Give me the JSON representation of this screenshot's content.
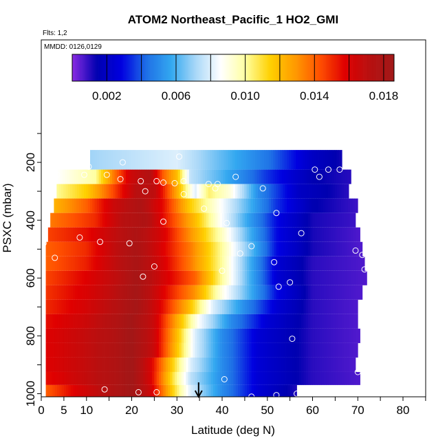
{
  "chart_data": {
    "type": "heatmap",
    "title": "ATOM2 Northeast_Pacific_1 HO2_GMI",
    "annotations": [
      "Flts: 1,2",
      "MMDD: 0126,0129"
    ],
    "xlabel": "Latitude (deg N)",
    "ylabel": "PSXC (mbar)",
    "xlim": [
      0,
      85
    ],
    "ylim": [
      1010,
      0
    ],
    "x_ticks": [
      0,
      5,
      10,
      20,
      30,
      40,
      50,
      60,
      70,
      80
    ],
    "y_ticks": [
      200,
      400,
      600,
      800,
      1000
    ],
    "colorbar": {
      "range": [
        0.0,
        0.0186
      ],
      "tick_values": [
        0.002,
        0.006,
        0.01,
        0.014,
        0.018
      ],
      "tick_labels": [
        "0.002",
        "0.006",
        "0.010",
        "0.014",
        "0.018"
      ],
      "colors": [
        "#8a2be2",
        "#0000b0",
        "#0000e0",
        "#1e6fe6",
        "#33a8f0",
        "#aad8f8",
        "#ffffff",
        "#ffffa0",
        "#ffd000",
        "#ff9a00",
        "#ff5000",
        "#e00000",
        "#b81010",
        "#a01818"
      ],
      "units": ""
    },
    "rows": [
      {
        "p": 200,
        "lat0": 10.8,
        "lat1": 66.5,
        "profile": [
          [
            10,
            0.007
          ],
          [
            30,
            0.008
          ],
          [
            50,
            0.0045
          ],
          [
            60,
            0.002
          ],
          [
            67,
            0.0012
          ]
        ]
      },
      {
        "p": 250,
        "lat0": 3.7,
        "lat1": 68.5,
        "profile": [
          [
            3,
            0.0085
          ],
          [
            12,
            0.01
          ],
          [
            16,
            0.0135
          ],
          [
            20,
            0.0165
          ],
          [
            24,
            0.0175
          ],
          [
            27,
            0.014
          ],
          [
            30,
            0.012
          ],
          [
            33,
            0.0075
          ],
          [
            40,
            0.006
          ],
          [
            50,
            0.0035
          ],
          [
            60,
            0.0015
          ],
          [
            69,
            0.001
          ]
        ]
      },
      {
        "p": 300,
        "lat0": 3.4,
        "lat1": 68.0,
        "profile": [
          [
            3,
            0.01
          ],
          [
            10,
            0.0115
          ],
          [
            16,
            0.0145
          ],
          [
            21,
            0.0172
          ],
          [
            25,
            0.017
          ],
          [
            30,
            0.0125
          ],
          [
            34,
            0.008
          ],
          [
            37,
            0.0105
          ],
          [
            42,
            0.009
          ],
          [
            48,
            0.005
          ],
          [
            57,
            0.002
          ],
          [
            68,
            0.001
          ]
        ]
      },
      {
        "p": 350,
        "lat0": 2.8,
        "lat1": 70.0,
        "profile": [
          [
            2,
            0.012
          ],
          [
            10,
            0.014
          ],
          [
            16,
            0.0165
          ],
          [
            22,
            0.0178
          ],
          [
            27,
            0.0155
          ],
          [
            33,
            0.0115
          ],
          [
            40,
            0.0085
          ],
          [
            46,
            0.006
          ],
          [
            52,
            0.0035
          ],
          [
            60,
            0.0015
          ],
          [
            70,
            0.0008
          ]
        ]
      },
      {
        "p": 400,
        "lat0": 2.0,
        "lat1": 69.5,
        "profile": [
          [
            2,
            0.0135
          ],
          [
            12,
            0.015
          ],
          [
            18,
            0.0172
          ],
          [
            23,
            0.0178
          ],
          [
            28,
            0.015
          ],
          [
            34,
            0.012
          ],
          [
            40,
            0.0085
          ],
          [
            46,
            0.0055
          ],
          [
            52,
            0.003
          ],
          [
            60,
            0.0012
          ],
          [
            70,
            0.0008
          ]
        ]
      },
      {
        "p": 450,
        "lat0": 1.5,
        "lat1": 70.5,
        "profile": [
          [
            1,
            0.0145
          ],
          [
            10,
            0.0155
          ],
          [
            17,
            0.017
          ],
          [
            21,
            0.0178
          ],
          [
            27,
            0.016
          ],
          [
            33,
            0.013
          ],
          [
            40,
            0.0095
          ],
          [
            46,
            0.006
          ],
          [
            52,
            0.003
          ],
          [
            60,
            0.0012
          ],
          [
            71,
            0.0006
          ]
        ]
      },
      {
        "p": 500,
        "lat0": 1.0,
        "lat1": 71.0,
        "profile": [
          [
            1,
            0.014
          ],
          [
            10,
            0.015
          ],
          [
            16,
            0.0168
          ],
          [
            21,
            0.018
          ],
          [
            27,
            0.0158
          ],
          [
            33,
            0.0135
          ],
          [
            40,
            0.01
          ],
          [
            46,
            0.0065
          ],
          [
            52,
            0.003
          ],
          [
            60,
            0.0012
          ],
          [
            71,
            0.0006
          ]
        ]
      },
      {
        "p": 550,
        "lat0": 1.0,
        "lat1": 71.5,
        "profile": [
          [
            1,
            0.014
          ],
          [
            10,
            0.0152
          ],
          [
            16,
            0.0168
          ],
          [
            21,
            0.018
          ],
          [
            27,
            0.016
          ],
          [
            33,
            0.0135
          ],
          [
            40,
            0.01
          ],
          [
            46,
            0.006
          ],
          [
            52,
            0.0025
          ],
          [
            60,
            0.001
          ],
          [
            72,
            0.0006
          ]
        ]
      },
      {
        "p": 600,
        "lat0": 1.0,
        "lat1": 72.0,
        "profile": [
          [
            1,
            0.0145
          ],
          [
            10,
            0.0158
          ],
          [
            17,
            0.017
          ],
          [
            21,
            0.0182
          ],
          [
            27,
            0.0162
          ],
          [
            34,
            0.014
          ],
          [
            40,
            0.01
          ],
          [
            46,
            0.006
          ],
          [
            52,
            0.0025
          ],
          [
            60,
            0.001
          ],
          [
            72,
            0.0006
          ]
        ]
      },
      {
        "p": 650,
        "lat0": 1.0,
        "lat1": 71.0,
        "profile": [
          [
            1,
            0.0148
          ],
          [
            10,
            0.016
          ],
          [
            16,
            0.017
          ],
          [
            21,
            0.0183
          ],
          [
            27,
            0.0158
          ],
          [
            34,
            0.013
          ],
          [
            40,
            0.009
          ],
          [
            46,
            0.006
          ],
          [
            52,
            0.003
          ],
          [
            60,
            0.001
          ],
          [
            71,
            0.0006
          ]
        ]
      },
      {
        "p": 700,
        "lat0": 1.0,
        "lat1": 70.0,
        "profile": [
          [
            1,
            0.015
          ],
          [
            10,
            0.0162
          ],
          [
            16,
            0.0172
          ],
          [
            21,
            0.0183
          ],
          [
            26,
            0.016
          ],
          [
            32,
            0.0125
          ],
          [
            38,
            0.008
          ],
          [
            45,
            0.005
          ],
          [
            52,
            0.0025
          ],
          [
            60,
            0.001
          ],
          [
            70,
            0.0006
          ]
        ]
      },
      {
        "p": 750,
        "lat0": 1.0,
        "lat1": 70.0,
        "profile": [
          [
            1,
            0.0155
          ],
          [
            10,
            0.0165
          ],
          [
            16,
            0.0175
          ],
          [
            20,
            0.0184
          ],
          [
            25,
            0.0165
          ],
          [
            30,
            0.0125
          ],
          [
            35,
            0.0085
          ],
          [
            42,
            0.005
          ],
          [
            50,
            0.0025
          ],
          [
            60,
            0.001
          ],
          [
            70,
            0.0006
          ]
        ]
      },
      {
        "p": 800,
        "lat0": 1.0,
        "lat1": 70.5,
        "profile": [
          [
            1,
            0.0158
          ],
          [
            10,
            0.0168
          ],
          [
            16,
            0.0175
          ],
          [
            20,
            0.0185
          ],
          [
            25,
            0.0165
          ],
          [
            30,
            0.012
          ],
          [
            34,
            0.008
          ],
          [
            40,
            0.005
          ],
          [
            48,
            0.0025
          ],
          [
            60,
            0.001
          ],
          [
            70,
            0.0006
          ]
        ]
      },
      {
        "p": 850,
        "lat0": 1.0,
        "lat1": 70.0,
        "profile": [
          [
            1,
            0.0158
          ],
          [
            10,
            0.0168
          ],
          [
            16,
            0.0176
          ],
          [
            20,
            0.0185
          ],
          [
            25,
            0.0165
          ],
          [
            30,
            0.0118
          ],
          [
            34,
            0.008
          ],
          [
            40,
            0.005
          ],
          [
            48,
            0.0025
          ],
          [
            60,
            0.001
          ],
          [
            70,
            0.0006
          ]
        ]
      },
      {
        "p": 900,
        "lat0": 1.0,
        "lat1": 69.5,
        "profile": [
          [
            1,
            0.0158
          ],
          [
            10,
            0.0168
          ],
          [
            16,
            0.0176
          ],
          [
            20,
            0.0185
          ],
          [
            24,
            0.0162
          ],
          [
            29,
            0.0115
          ],
          [
            33,
            0.008
          ],
          [
            40,
            0.005
          ],
          [
            48,
            0.0025
          ],
          [
            60,
            0.001
          ],
          [
            70,
            0.0006
          ]
        ]
      },
      {
        "p": 950,
        "lat0": 1.0,
        "lat1": 70.5,
        "profile": [
          [
            1,
            0.0155
          ],
          [
            10,
            0.0168
          ],
          [
            16,
            0.0176
          ],
          [
            20,
            0.0185
          ],
          [
            24,
            0.0162
          ],
          [
            29,
            0.011
          ],
          [
            33,
            0.0075
          ],
          [
            40,
            0.005
          ],
          [
            48,
            0.0025
          ],
          [
            60,
            0.001
          ],
          [
            71,
            0.0006
          ]
        ]
      },
      {
        "p": 990,
        "lat0": 1.0,
        "lat1": 56.5,
        "profile": [
          [
            1,
            0.014
          ],
          [
            8,
            0.016
          ],
          [
            14,
            0.0172
          ],
          [
            20,
            0.0185
          ],
          [
            24,
            0.0165
          ],
          [
            29,
            0.0115
          ],
          [
            33,
            0.008
          ],
          [
            40,
            0.005
          ],
          [
            48,
            0.0025
          ],
          [
            57,
            0.001
          ]
        ]
      }
    ],
    "flight_points": [
      [
        10.5,
        215
      ],
      [
        18,
        200
      ],
      [
        30.5,
        180
      ],
      [
        3.5,
        243
      ],
      [
        9.5,
        243
      ],
      [
        14.5,
        243
      ],
      [
        17.5,
        258
      ],
      [
        22,
        265
      ],
      [
        25.5,
        265
      ],
      [
        27,
        270
      ],
      [
        29.5,
        272
      ],
      [
        31.5,
        265
      ],
      [
        37,
        275
      ],
      [
        38.5,
        290
      ],
      [
        39,
        275
      ],
      [
        43,
        250
      ],
      [
        49,
        290
      ],
      [
        60.5,
        225
      ],
      [
        61.5,
        250
      ],
      [
        63.5,
        225
      ],
      [
        66,
        225
      ],
      [
        23,
        300
      ],
      [
        31.5,
        310
      ],
      [
        36,
        360
      ],
      [
        41,
        410
      ],
      [
        27,
        405
      ],
      [
        52,
        375
      ],
      [
        57.5,
        445
      ],
      [
        44,
        515
      ],
      [
        46.5,
        490
      ],
      [
        51.5,
        545
      ],
      [
        0.5,
        480
      ],
      [
        13,
        475
      ],
      [
        19.5,
        480
      ],
      [
        8.5,
        460
      ],
      [
        3,
        530
      ],
      [
        25,
        560
      ],
      [
        22.5,
        595
      ],
      [
        40,
        575
      ],
      [
        52.5,
        630
      ],
      [
        55,
        615
      ],
      [
        69.5,
        505
      ],
      [
        71,
        520
      ],
      [
        71.5,
        570
      ],
      [
        55.5,
        810
      ],
      [
        70,
        925
      ],
      [
        40.5,
        950
      ],
      [
        14,
        985
      ],
      [
        21.5,
        995
      ],
      [
        25.5,
        995
      ],
      [
        46.5,
        1010
      ],
      [
        52,
        1005
      ],
      [
        56.5,
        1000
      ]
    ],
    "marker": {
      "lat": 34.8,
      "direction": "down"
    }
  }
}
